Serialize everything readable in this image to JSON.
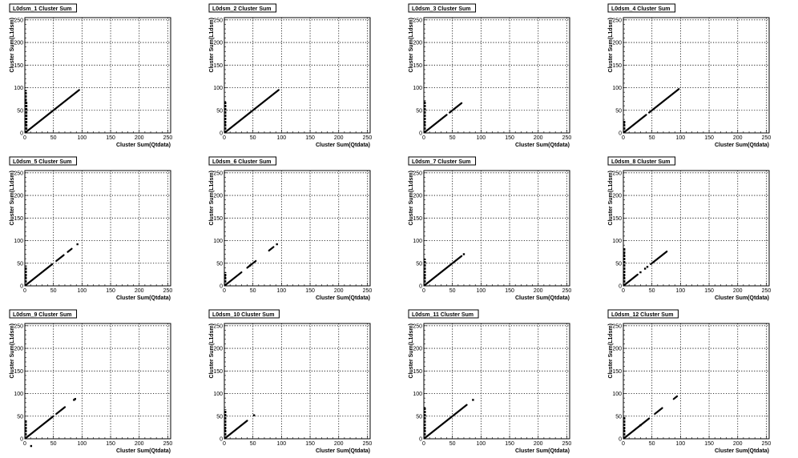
{
  "colors": {
    "background": "#ffffff",
    "frame": "#000000",
    "grid": "#000000",
    "points": "#000000"
  },
  "chart_data": [
    {
      "type": "scatter",
      "title": "L0dsm_1 Cluster Sum",
      "xlabel": "Cluster Sum(Qtdata)",
      "ylabel": "Cluster Sum(L1dsm)",
      "xlim": [
        0,
        255
      ],
      "ylim": [
        0,
        255
      ],
      "xticks": [
        "0",
        "50",
        "100",
        "150",
        "200",
        "250"
      ],
      "yticks": [
        "0",
        "50",
        "100",
        "150",
        "200",
        "250"
      ],
      "grid": true,
      "diagonal": [
        [
          2,
          2
        ],
        [
          95,
          95
        ]
      ],
      "vertical": [
        [
          2,
          0,
          95
        ],
        [
          3,
          0,
          70
        ]
      ],
      "points": []
    },
    {
      "type": "scatter",
      "title": "L0dsm_2 Cluster Sum",
      "xlabel": "Cluster Sum(Qtdata)",
      "ylabel": "Cluster Sum(L1dsm)",
      "xlim": [
        0,
        255
      ],
      "ylim": [
        0,
        255
      ],
      "xticks": [
        "0",
        "50",
        "100",
        "150",
        "200",
        "250"
      ],
      "yticks": [
        "0",
        "50",
        "100",
        "150",
        "200",
        "250"
      ],
      "grid": true,
      "diagonal": [
        [
          2,
          2
        ],
        [
          95,
          95
        ]
      ],
      "vertical": [
        [
          2,
          0,
          70
        ]
      ],
      "points": []
    },
    {
      "type": "scatter",
      "title": "L0dsm_3 Cluster Sum",
      "xlabel": "Cluster Sum(Qtdata)",
      "ylabel": "Cluster Sum(L1dsm)",
      "xlim": [
        0,
        255
      ],
      "ylim": [
        0,
        255
      ],
      "xticks": [
        "0",
        "50",
        "100",
        "150",
        "200",
        "250"
      ],
      "yticks": [
        "0",
        "50",
        "100",
        "150",
        "200",
        "250"
      ],
      "grid": true,
      "diagonal": [
        [
          2,
          2
        ],
        [
          40,
          40
        ],
        [
          45,
          45
        ],
        [
          66,
          66
        ]
      ],
      "vertical": [
        [
          2,
          0,
          72
        ]
      ],
      "points": []
    },
    {
      "type": "scatter",
      "title": "L0dsm_4 Cluster Sum",
      "xlabel": "Cluster Sum(Qtdata)",
      "ylabel": "Cluster Sum(L1dsm)",
      "xlim": [
        0,
        255
      ],
      "ylim": [
        0,
        255
      ],
      "xticks": [
        "0",
        "50",
        "100",
        "150",
        "200",
        "250"
      ],
      "yticks": [
        "0",
        "50",
        "100",
        "150",
        "200",
        "250"
      ],
      "grid": true,
      "diagonal": [
        [
          2,
          2
        ],
        [
          40,
          40
        ],
        [
          45,
          45
        ],
        [
          97,
          97
        ]
      ],
      "vertical": [
        [
          2,
          0,
          28
        ]
      ],
      "points": []
    },
    {
      "type": "scatter",
      "title": "L0dsm_5 Cluster Sum",
      "xlabel": "Cluster Sum(Qtdata)",
      "ylabel": "Cluster Sum(L1dsm)",
      "xlim": [
        0,
        255
      ],
      "ylim": [
        0,
        255
      ],
      "xticks": [
        "0",
        "50",
        "100",
        "150",
        "200",
        "250"
      ],
      "yticks": [
        "0",
        "50",
        "100",
        "150",
        "200",
        "250"
      ],
      "grid": true,
      "diagonal": [
        [
          2,
          2
        ],
        [
          48,
          48
        ],
        [
          55,
          55
        ],
        [
          68,
          68
        ],
        [
          75,
          75
        ],
        [
          82,
          82
        ]
      ],
      "vertical": [
        [
          2,
          0,
          45
        ]
      ],
      "points": [
        [
          92,
          92
        ]
      ]
    },
    {
      "type": "scatter",
      "title": "L0dsm_6 Cluster Sum",
      "xlabel": "Cluster Sum(Qtdata)",
      "ylabel": "Cluster Sum(L1dsm)",
      "xlim": [
        0,
        255
      ],
      "ylim": [
        0,
        255
      ],
      "xticks": [
        "0",
        "50",
        "100",
        "150",
        "200",
        "250"
      ],
      "yticks": [
        "0",
        "50",
        "100",
        "150",
        "200",
        "250"
      ],
      "grid": true,
      "diagonal": [
        [
          2,
          2
        ],
        [
          30,
          30
        ],
        [
          40,
          40
        ],
        [
          55,
          55
        ],
        [
          78,
          78
        ],
        [
          86,
          86
        ]
      ],
      "vertical": [
        [
          2,
          0,
          30
        ]
      ],
      "points": [
        [
          92,
          92
        ],
        [
          45,
          45
        ]
      ]
    },
    {
      "type": "scatter",
      "title": "L0dsm_7 Cluster Sum",
      "xlabel": "Cluster Sum(Qtdata)",
      "ylabel": "Cluster Sum(L1dsm)",
      "xlim": [
        0,
        255
      ],
      "ylim": [
        0,
        255
      ],
      "xticks": [
        "0",
        "50",
        "100",
        "150",
        "200",
        "250"
      ],
      "yticks": [
        "0",
        "50",
        "100",
        "150",
        "200",
        "250"
      ],
      "grid": true,
      "diagonal": [
        [
          2,
          2
        ],
        [
          66,
          66
        ]
      ],
      "vertical": [
        [
          2,
          0,
          60
        ]
      ],
      "points": [
        [
          70,
          70
        ]
      ]
    },
    {
      "type": "scatter",
      "title": "L0dsm_8 Cluster Sum",
      "xlabel": "Cluster Sum(Qtdata)",
      "ylabel": "Cluster Sum(L1dsm)",
      "xlim": [
        0,
        255
      ],
      "ylim": [
        0,
        255
      ],
      "xticks": [
        "0",
        "50",
        "100",
        "150",
        "200",
        "250"
      ],
      "yticks": [
        "0",
        "50",
        "100",
        "150",
        "200",
        "250"
      ],
      "grid": true,
      "diagonal": [
        [
          2,
          2
        ],
        [
          25,
          25
        ],
        [
          48,
          48
        ],
        [
          76,
          76
        ]
      ],
      "vertical": [
        [
          2,
          0,
          85
        ]
      ],
      "points": [
        [
          30,
          30
        ],
        [
          38,
          38
        ],
        [
          42,
          42
        ]
      ]
    },
    {
      "type": "scatter",
      "title": "L0dsm_9 Cluster Sum",
      "xlabel": "Cluster Sum(Qtdata)",
      "ylabel": "Cluster Sum(L1dsm)",
      "xlim": [
        0,
        255
      ],
      "ylim": [
        0,
        255
      ],
      "xticks": [
        "0",
        "50",
        "100",
        "150",
        "200",
        "250"
      ],
      "yticks": [
        "0",
        "50",
        "100",
        "150",
        "200",
        "250"
      ],
      "grid": true,
      "diagonal": [
        [
          2,
          2
        ],
        [
          50,
          50
        ],
        [
          55,
          55
        ],
        [
          70,
          70
        ]
      ],
      "vertical": [
        [
          2,
          0,
          42
        ]
      ],
      "points": [
        [
          86,
          86
        ],
        [
          88,
          88
        ],
        [
          11,
          -16
        ]
      ]
    },
    {
      "type": "scatter",
      "title": "L0dsm_10 Cluster Sum",
      "xlabel": "Cluster Sum(Qtdata)",
      "ylabel": "Cluster Sum(L1dsm)",
      "xlim": [
        0,
        255
      ],
      "ylim": [
        0,
        255
      ],
      "xticks": [
        "0",
        "50",
        "100",
        "150",
        "200",
        "250"
      ],
      "yticks": [
        "0",
        "50",
        "100",
        "150",
        "200",
        "250"
      ],
      "grid": true,
      "diagonal": [
        [
          2,
          2
        ],
        [
          40,
          40
        ]
      ],
      "vertical": [
        [
          2,
          0,
          65
        ]
      ],
      "points": [
        [
          52,
          52
        ]
      ]
    },
    {
      "type": "scatter",
      "title": "L0dsm_11 Cluster Sum",
      "xlabel": "Cluster Sum(Qtdata)",
      "ylabel": "Cluster Sum(L1dsm)",
      "xlim": [
        0,
        255
      ],
      "ylim": [
        0,
        255
      ],
      "xticks": [
        "0",
        "50",
        "100",
        "150",
        "200",
        "250"
      ],
      "yticks": [
        "0",
        "50",
        "100",
        "150",
        "200",
        "250"
      ],
      "grid": true,
      "diagonal": [
        [
          2,
          2
        ],
        [
          75,
          75
        ]
      ],
      "vertical": [
        [
          2,
          0,
          70
        ]
      ],
      "points": [
        [
          86,
          86
        ]
      ]
    },
    {
      "type": "scatter",
      "title": "L0dsm_12 Cluster Sum",
      "xlabel": "Cluster Sum(Qtdata)",
      "ylabel": "Cluster Sum(L1dsm)",
      "xlim": [
        0,
        255
      ],
      "ylim": [
        0,
        255
      ],
      "xticks": [
        "0",
        "50",
        "100",
        "150",
        "200",
        "250"
      ],
      "yticks": [
        "0",
        "50",
        "100",
        "150",
        "200",
        "250"
      ],
      "grid": true,
      "diagonal": [
        [
          2,
          2
        ],
        [
          45,
          45
        ],
        [
          55,
          55
        ],
        [
          68,
          68
        ],
        [
          88,
          88
        ],
        [
          94,
          94
        ]
      ],
      "vertical": [
        [
          2,
          0,
          48
        ]
      ],
      "points": [
        [
          30,
          30
        ]
      ]
    }
  ]
}
